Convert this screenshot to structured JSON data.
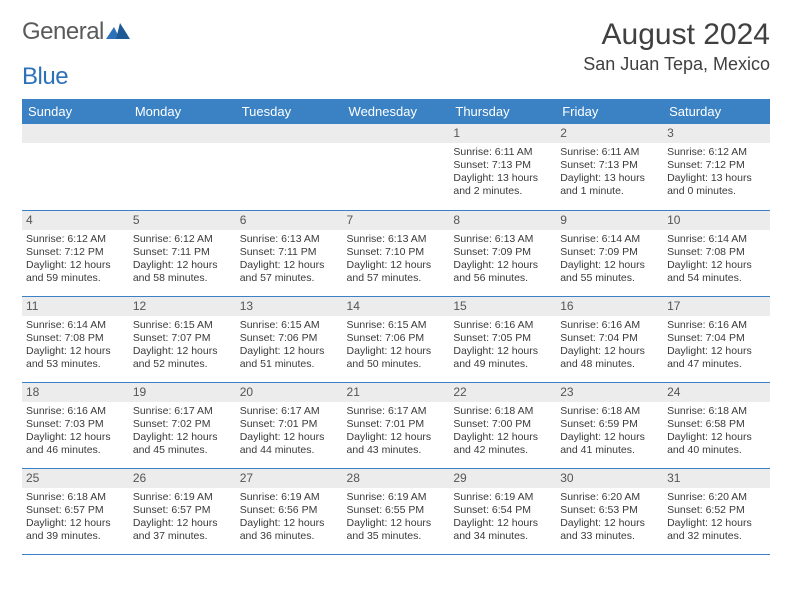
{
  "logo": {
    "text_general": "General",
    "text_blue": "Blue"
  },
  "title": "August 2024",
  "location": "San Juan Tepa, Mexico",
  "colors": {
    "header_bg": "#3a82c4",
    "daynum_bg": "#ececec",
    "grid_border": "#3a82c4",
    "page_bg": "#ffffff"
  },
  "day_headers": [
    "Sunday",
    "Monday",
    "Tuesday",
    "Wednesday",
    "Thursday",
    "Friday",
    "Saturday"
  ],
  "weeks": [
    [
      null,
      null,
      null,
      null,
      {
        "n": "1",
        "sr": "6:11 AM",
        "ss": "7:13 PM",
        "dl": "13 hours and 2 minutes."
      },
      {
        "n": "2",
        "sr": "6:11 AM",
        "ss": "7:13 PM",
        "dl": "13 hours and 1 minute."
      },
      {
        "n": "3",
        "sr": "6:12 AM",
        "ss": "7:12 PM",
        "dl": "13 hours and 0 minutes."
      }
    ],
    [
      {
        "n": "4",
        "sr": "6:12 AM",
        "ss": "7:12 PM",
        "dl": "12 hours and 59 minutes."
      },
      {
        "n": "5",
        "sr": "6:12 AM",
        "ss": "7:11 PM",
        "dl": "12 hours and 58 minutes."
      },
      {
        "n": "6",
        "sr": "6:13 AM",
        "ss": "7:11 PM",
        "dl": "12 hours and 57 minutes."
      },
      {
        "n": "7",
        "sr": "6:13 AM",
        "ss": "7:10 PM",
        "dl": "12 hours and 57 minutes."
      },
      {
        "n": "8",
        "sr": "6:13 AM",
        "ss": "7:09 PM",
        "dl": "12 hours and 56 minutes."
      },
      {
        "n": "9",
        "sr": "6:14 AM",
        "ss": "7:09 PM",
        "dl": "12 hours and 55 minutes."
      },
      {
        "n": "10",
        "sr": "6:14 AM",
        "ss": "7:08 PM",
        "dl": "12 hours and 54 minutes."
      }
    ],
    [
      {
        "n": "11",
        "sr": "6:14 AM",
        "ss": "7:08 PM",
        "dl": "12 hours and 53 minutes."
      },
      {
        "n": "12",
        "sr": "6:15 AM",
        "ss": "7:07 PM",
        "dl": "12 hours and 52 minutes."
      },
      {
        "n": "13",
        "sr": "6:15 AM",
        "ss": "7:06 PM",
        "dl": "12 hours and 51 minutes."
      },
      {
        "n": "14",
        "sr": "6:15 AM",
        "ss": "7:06 PM",
        "dl": "12 hours and 50 minutes."
      },
      {
        "n": "15",
        "sr": "6:16 AM",
        "ss": "7:05 PM",
        "dl": "12 hours and 49 minutes."
      },
      {
        "n": "16",
        "sr": "6:16 AM",
        "ss": "7:04 PM",
        "dl": "12 hours and 48 minutes."
      },
      {
        "n": "17",
        "sr": "6:16 AM",
        "ss": "7:04 PM",
        "dl": "12 hours and 47 minutes."
      }
    ],
    [
      {
        "n": "18",
        "sr": "6:16 AM",
        "ss": "7:03 PM",
        "dl": "12 hours and 46 minutes."
      },
      {
        "n": "19",
        "sr": "6:17 AM",
        "ss": "7:02 PM",
        "dl": "12 hours and 45 minutes."
      },
      {
        "n": "20",
        "sr": "6:17 AM",
        "ss": "7:01 PM",
        "dl": "12 hours and 44 minutes."
      },
      {
        "n": "21",
        "sr": "6:17 AM",
        "ss": "7:01 PM",
        "dl": "12 hours and 43 minutes."
      },
      {
        "n": "22",
        "sr": "6:18 AM",
        "ss": "7:00 PM",
        "dl": "12 hours and 42 minutes."
      },
      {
        "n": "23",
        "sr": "6:18 AM",
        "ss": "6:59 PM",
        "dl": "12 hours and 41 minutes."
      },
      {
        "n": "24",
        "sr": "6:18 AM",
        "ss": "6:58 PM",
        "dl": "12 hours and 40 minutes."
      }
    ],
    [
      {
        "n": "25",
        "sr": "6:18 AM",
        "ss": "6:57 PM",
        "dl": "12 hours and 39 minutes."
      },
      {
        "n": "26",
        "sr": "6:19 AM",
        "ss": "6:57 PM",
        "dl": "12 hours and 37 minutes."
      },
      {
        "n": "27",
        "sr": "6:19 AM",
        "ss": "6:56 PM",
        "dl": "12 hours and 36 minutes."
      },
      {
        "n": "28",
        "sr": "6:19 AM",
        "ss": "6:55 PM",
        "dl": "12 hours and 35 minutes."
      },
      {
        "n": "29",
        "sr": "6:19 AM",
        "ss": "6:54 PM",
        "dl": "12 hours and 34 minutes."
      },
      {
        "n": "30",
        "sr": "6:20 AM",
        "ss": "6:53 PM",
        "dl": "12 hours and 33 minutes."
      },
      {
        "n": "31",
        "sr": "6:20 AM",
        "ss": "6:52 PM",
        "dl": "12 hours and 32 minutes."
      }
    ]
  ],
  "labels": {
    "sunrise": "Sunrise:",
    "sunset": "Sunset:",
    "daylight": "Daylight:"
  }
}
